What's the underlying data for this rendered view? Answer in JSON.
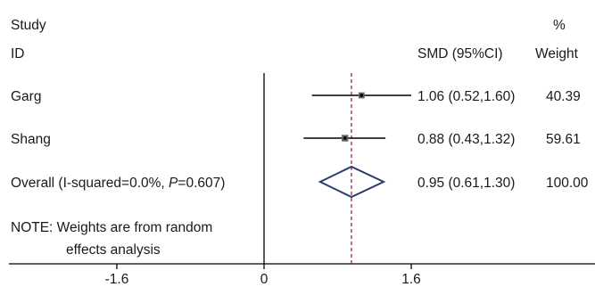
{
  "chart_data": {
    "type": "forest",
    "header": {
      "study_line1": "Study",
      "study_line2": "ID",
      "effect_label": "SMD (95%CI)",
      "weight_line1": "%",
      "weight_line2": "Weight"
    },
    "studies": [
      {
        "label": "Garg",
        "est": 1.06,
        "lo": 0.52,
        "hi": 1.6,
        "ci_text": "1.06 (0.52,1.60)",
        "weight": 40.39,
        "weight_text": "40.39"
      },
      {
        "label": "Shang",
        "est": 0.88,
        "lo": 0.43,
        "hi": 1.32,
        "ci_text": "0.88 (0.43,1.32)",
        "weight": 59.61,
        "weight_text": "59.61"
      }
    ],
    "overall": {
      "label_pre": "Overall (I-squared=0.0%, ",
      "label_p": "P",
      "label_post": "=0.607)",
      "est": 0.95,
      "lo": 0.61,
      "hi": 1.3,
      "ci_text": "0.95 (0.61,1.30)",
      "weight_text": "100.00"
    },
    "note_line1": "NOTE: Weights are from random",
    "note_line2": "effects analysis",
    "axis": {
      "ticks": [
        -1.6,
        0,
        1.6
      ],
      "tick_labels": [
        "-1.6",
        "0",
        "1.6"
      ],
      "null_line": 0
    },
    "colors": {
      "diamond": "#2b3a6e",
      "reference_line": "#8b1a2b",
      "ink": "#000000"
    }
  }
}
